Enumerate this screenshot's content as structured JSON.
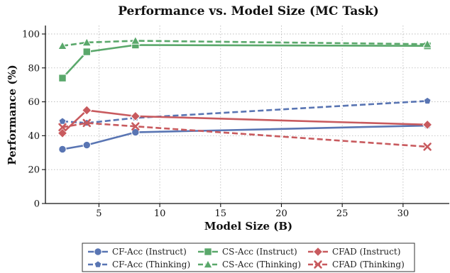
{
  "chart_data": {
    "type": "line",
    "title": "Performance vs. Model Size (MC Task)",
    "xlabel": "Model Size (B)",
    "ylabel": "Performance (%)",
    "xlim": [
      0.6,
      33.8
    ],
    "ylim": [
      0,
      105
    ],
    "xticks": [
      5,
      10,
      15,
      20,
      25,
      30
    ],
    "yticks": [
      0,
      20,
      40,
      60,
      80,
      100
    ],
    "grid": true,
    "legend_position": "bottom-center",
    "series": [
      {
        "name": "CF-Acc (Instruct)",
        "color": "#5975b3",
        "dash": "solid",
        "marker": "circle",
        "points": [
          {
            "x": 2,
            "y": 32
          },
          {
            "x": 4,
            "y": 34.5
          },
          {
            "x": 8,
            "y": 42
          },
          {
            "x": 32,
            "y": 46
          }
        ]
      },
      {
        "name": "CF-Acc (Thinking)",
        "color": "#5975b3",
        "dash": "dashed",
        "marker": "pentagon",
        "points": [
          {
            "x": 2,
            "y": 48.5
          },
          {
            "x": 4,
            "y": 47.5
          },
          {
            "x": 8,
            "y": 50.5
          },
          {
            "x": 32,
            "y": 60.5
          }
        ]
      },
      {
        "name": "CS-Acc (Instruct)",
        "color": "#5aa86b",
        "dash": "solid",
        "marker": "square",
        "points": [
          {
            "x": 2,
            "y": 74
          },
          {
            "x": 4,
            "y": 89.5
          },
          {
            "x": 8,
            "y": 93.5
          },
          {
            "x": 32,
            "y": 93
          }
        ]
      },
      {
        "name": "CS-Acc (Thinking)",
        "color": "#5aa86b",
        "dash": "dashed",
        "marker": "triangle",
        "points": [
          {
            "x": 2,
            "y": 93
          },
          {
            "x": 4,
            "y": 95
          },
          {
            "x": 8,
            "y": 96
          },
          {
            "x": 32,
            "y": 94
          }
        ]
      },
      {
        "name": "CFAD (Instruct)",
        "color": "#c85a5e",
        "dash": "solid",
        "marker": "diamond",
        "points": [
          {
            "x": 2,
            "y": 41.5
          },
          {
            "x": 4,
            "y": 55
          },
          {
            "x": 8,
            "y": 51.5
          },
          {
            "x": 32,
            "y": 46.5
          }
        ]
      },
      {
        "name": "CFAD (Thinking)",
        "color": "#c85a5e",
        "dash": "dashed",
        "marker": "x",
        "points": [
          {
            "x": 2,
            "y": 45
          },
          {
            "x": 4,
            "y": 47.5
          },
          {
            "x": 8,
            "y": 45.5
          },
          {
            "x": 32,
            "y": 33.5
          }
        ]
      }
    ]
  }
}
